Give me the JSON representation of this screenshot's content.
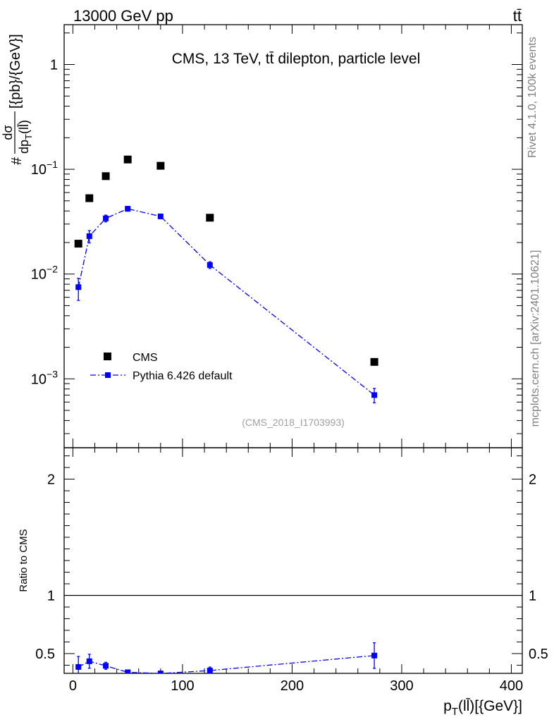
{
  "header": {
    "left": "13000 GeV pp",
    "right": "tt̄"
  },
  "side": {
    "rivet": "Rivet 4.1.0,  100k events",
    "mcplots": "mcplots.cern.ch [arXiv:2401.10621]"
  },
  "chart_data": {
    "type": "scatter",
    "title": "CMS, 13 TeV, tt̄ dilepton, particle level",
    "analysis_tag": "(CMS_2018_I1703993)",
    "xlabel": "p_T(ll̄)[{GeV}]",
    "ylabel": "# dσ/dp_T(ll̄) [{pb}/{GeV}]",
    "ylabel_parts": {
      "hash": "#",
      "num": "dσ",
      "den": "dp",
      "den_sub": "T",
      "den_arg": "(ll̄)",
      "units": "[{pb}/{GeV}]"
    },
    "xlabel_parts": {
      "main": "p",
      "sub": "T",
      "rest": "(ll̄)[{GeV}]"
    },
    "xlim": [
      -8,
      410
    ],
    "ylim_main": [
      0.00022,
      2.4
    ],
    "yscale_main": "log",
    "ylim_ratio": [
      0.33,
      2.27
    ],
    "ratio_ylabel": "Ratio to CMS",
    "x_ticks": [
      0,
      100,
      200,
      300,
      400
    ],
    "x_tick_labels": [
      "0",
      "100",
      "200",
      "300",
      "400"
    ],
    "main_y_ticks": [
      0.001,
      0.01,
      0.1,
      1
    ],
    "main_y_tick_labels": [
      {
        "base": "10",
        "exp": "−3"
      },
      {
        "base": "10",
        "exp": "−2"
      },
      {
        "base": "10",
        "exp": "−1"
      },
      {
        "base": "1",
        "exp": ""
      }
    ],
    "ratio_y_ticks": [
      0.5,
      1,
      2
    ],
    "ratio_y_tick_labels": [
      "0.5",
      "1",
      "2"
    ],
    "legend": [
      {
        "label": "CMS",
        "style": "black-square"
      },
      {
        "label": "Pythia 6.426 default",
        "style": "blue-dashdot-square"
      }
    ],
    "series": [
      {
        "name": "CMS",
        "color": "#000000",
        "x": [
          5,
          15,
          30,
          50,
          80,
          125,
          275
        ],
        "y": [
          0.0195,
          0.053,
          0.086,
          0.124,
          0.108,
          0.0345,
          0.00145
        ]
      },
      {
        "name": "Pythia 6.426 default",
        "color": "#0000ff",
        "x": [
          5,
          15,
          30,
          50,
          80,
          125,
          275
        ],
        "y": [
          0.0075,
          0.023,
          0.034,
          0.042,
          0.0355,
          0.0122,
          0.0007
        ],
        "y_err_low": [
          0.0019,
          0.0032,
          0.0025,
          0.0022,
          0.0016,
          0.0009,
          0.00011
        ],
        "y_err_high": [
          0.0016,
          0.003,
          0.0025,
          0.0022,
          0.0016,
          0.0009,
          0.00011
        ],
        "ratio": [
          0.385,
          0.434,
          0.395,
          0.339,
          0.329,
          0.354,
          0.483
        ],
        "ratio_err": [
          0.09,
          0.06,
          0.03,
          0.02,
          0.02,
          0.03,
          0.11
        ]
      }
    ]
  }
}
